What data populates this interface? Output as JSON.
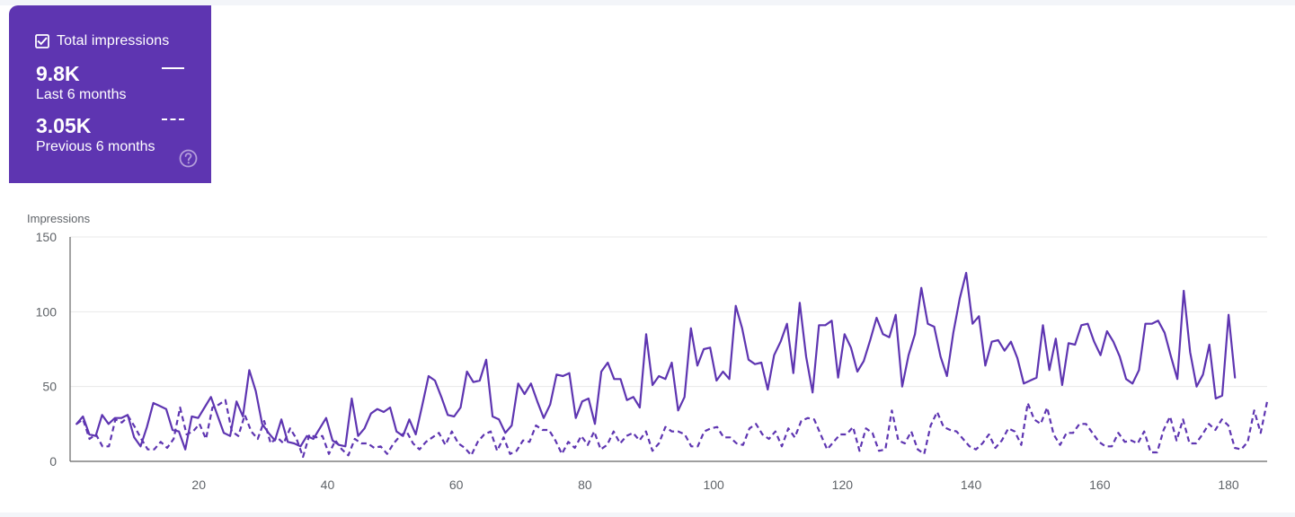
{
  "metric_card": {
    "label": "Total impressions",
    "checked": true,
    "current_value": "9.8K",
    "current_period": "Last 6 months",
    "previous_value": "3.05K",
    "previous_period": "Previous 6 months",
    "icons": [
      "checkbox-checked-icon",
      "help-icon"
    ]
  },
  "colors": {
    "accent": "#5e35b1",
    "series_line": "#5e35b1",
    "grid": "#e8e8e8",
    "axis": "#666666",
    "text": "#5f6368"
  },
  "chart_data": {
    "type": "line",
    "ylabel": "Impressions",
    "xlabel": "",
    "ylim": [
      0,
      150
    ],
    "yticks": [
      0,
      50,
      100,
      150
    ],
    "xlim": [
      0,
      186
    ],
    "xticks": [
      20,
      40,
      60,
      80,
      100,
      120,
      140,
      160,
      180
    ],
    "grid": true,
    "series": [
      {
        "name": "Last 6 months",
        "style": "solid",
        "values": [
          25,
          30,
          18,
          17,
          31,
          25,
          29,
          29,
          31,
          16,
          10,
          23,
          39,
          37,
          35,
          21,
          20,
          8,
          30,
          29,
          36,
          43,
          31,
          19,
          17,
          40,
          30,
          61,
          47,
          25,
          19,
          14,
          28,
          13,
          12,
          10,
          17,
          15,
          22,
          29,
          14,
          11,
          10,
          42,
          17,
          22,
          32,
          35,
          33,
          36,
          20,
          17,
          28,
          18,
          37,
          57,
          54,
          43,
          31,
          30,
          36,
          60,
          53,
          54,
          68,
          30,
          28,
          19,
          24,
          52,
          45,
          52,
          40,
          29,
          38,
          58,
          57,
          59,
          29,
          40,
          42,
          25,
          60,
          66,
          55,
          55,
          41,
          43,
          36,
          85,
          51,
          57,
          55,
          66,
          34,
          43,
          89,
          64,
          75,
          76,
          54,
          60,
          55,
          104,
          89,
          68,
          65,
          66,
          48,
          71,
          80,
          92,
          59,
          106,
          70,
          46,
          91,
          91,
          94,
          56,
          85,
          76,
          60,
          67,
          81,
          96,
          85,
          83,
          98,
          50,
          71,
          85,
          116,
          92,
          90,
          70,
          57,
          86,
          109,
          126,
          92,
          97,
          64,
          80,
          81,
          74,
          80,
          69,
          52,
          54,
          56,
          91,
          61,
          82,
          51,
          79,
          78,
          91,
          92,
          80,
          71,
          87,
          80,
          70,
          55,
          52,
          61,
          92,
          92,
          94,
          86,
          70,
          55,
          114,
          73,
          50,
          58,
          78,
          42,
          44,
          98,
          56
        ],
        "end_x": 181
      },
      {
        "name": "Previous 6 months",
        "style": "dashed",
        "values": [
          25,
          28,
          15,
          18,
          10,
          10,
          28,
          26,
          30,
          23,
          15,
          8,
          8,
          13,
          9,
          15,
          36,
          18,
          20,
          25,
          15,
          36,
          38,
          41,
          20,
          17,
          31,
          20,
          15,
          27,
          12,
          16,
          12,
          22,
          15,
          3,
          18,
          16,
          17,
          5,
          14,
          8,
          4,
          15,
          12,
          12,
          9,
          10,
          5,
          12,
          17,
          20,
          12,
          8,
          13,
          16,
          19,
          11,
          20,
          12,
          9,
          4,
          13,
          18,
          20,
          7,
          16,
          5,
          7,
          14,
          13,
          24,
          21,
          21,
          14,
          5,
          13,
          9,
          17,
          11,
          20,
          8,
          11,
          20,
          12,
          17,
          19,
          14,
          20,
          7,
          12,
          23,
          20,
          20,
          18,
          10,
          10,
          20,
          22,
          23,
          16,
          16,
          12,
          11,
          22,
          25,
          18,
          15,
          20,
          10,
          22,
          16,
          27,
          29,
          28,
          18,
          8,
          13,
          18,
          18,
          23,
          7,
          22,
          19,
          7,
          8,
          34,
          14,
          12,
          20,
          8,
          5,
          24,
          33,
          23,
          21,
          20,
          15,
          10,
          8,
          12,
          18,
          9,
          14,
          22,
          20,
          11,
          39,
          28,
          25,
          36,
          18,
          11,
          19,
          19,
          25,
          25,
          19,
          13,
          10,
          10,
          19,
          13,
          14,
          12,
          20,
          6,
          6,
          21,
          30,
          14,
          28,
          12,
          12,
          18,
          25,
          21,
          28,
          24,
          9,
          8,
          13,
          34,
          19,
          40
        ],
        "end_x": 186
      }
    ]
  }
}
